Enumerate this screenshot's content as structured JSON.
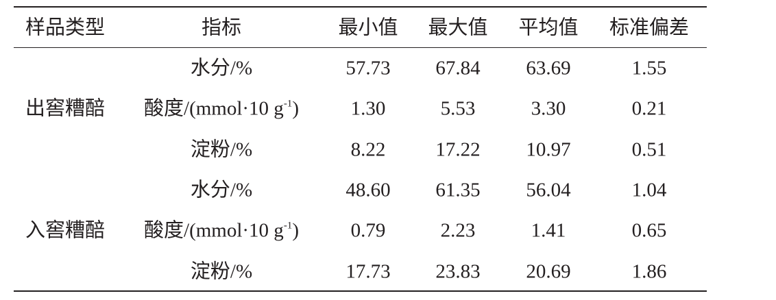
{
  "table": {
    "header": [
      "样品类型",
      "指标",
      "最小值",
      "最大值",
      "平均值",
      "标准偏差"
    ],
    "groups": [
      {
        "label": "出窖糟醅",
        "rows": [
          {
            "indicator": "水分/%",
            "values": [
              "57.73",
              "67.84",
              "63.69",
              "1.55"
            ]
          },
          {
            "indicator": {
              "text": "酸度/(mmol·10 g",
              "sup": "-1",
              "tail": ")"
            },
            "values": [
              "1.30",
              "5.53",
              "3.30",
              "0.21"
            ]
          },
          {
            "indicator": "淀粉/%",
            "values": [
              "8.22",
              "17.22",
              "10.97",
              "0.51"
            ]
          }
        ]
      },
      {
        "label": "入窖糟醅",
        "rows": [
          {
            "indicator": "水分/%",
            "values": [
              "48.60",
              "61.35",
              "56.04",
              "1.04"
            ]
          },
          {
            "indicator": {
              "text": "酸度/(mmol·10 g",
              "sup": "-1",
              "tail": ")"
            },
            "values": [
              "0.79",
              "2.23",
              "1.41",
              "0.65"
            ]
          },
          {
            "indicator": "淀粉/%",
            "values": [
              "17.73",
              "23.83",
              "20.69",
              "1.86"
            ]
          }
        ]
      }
    ]
  }
}
